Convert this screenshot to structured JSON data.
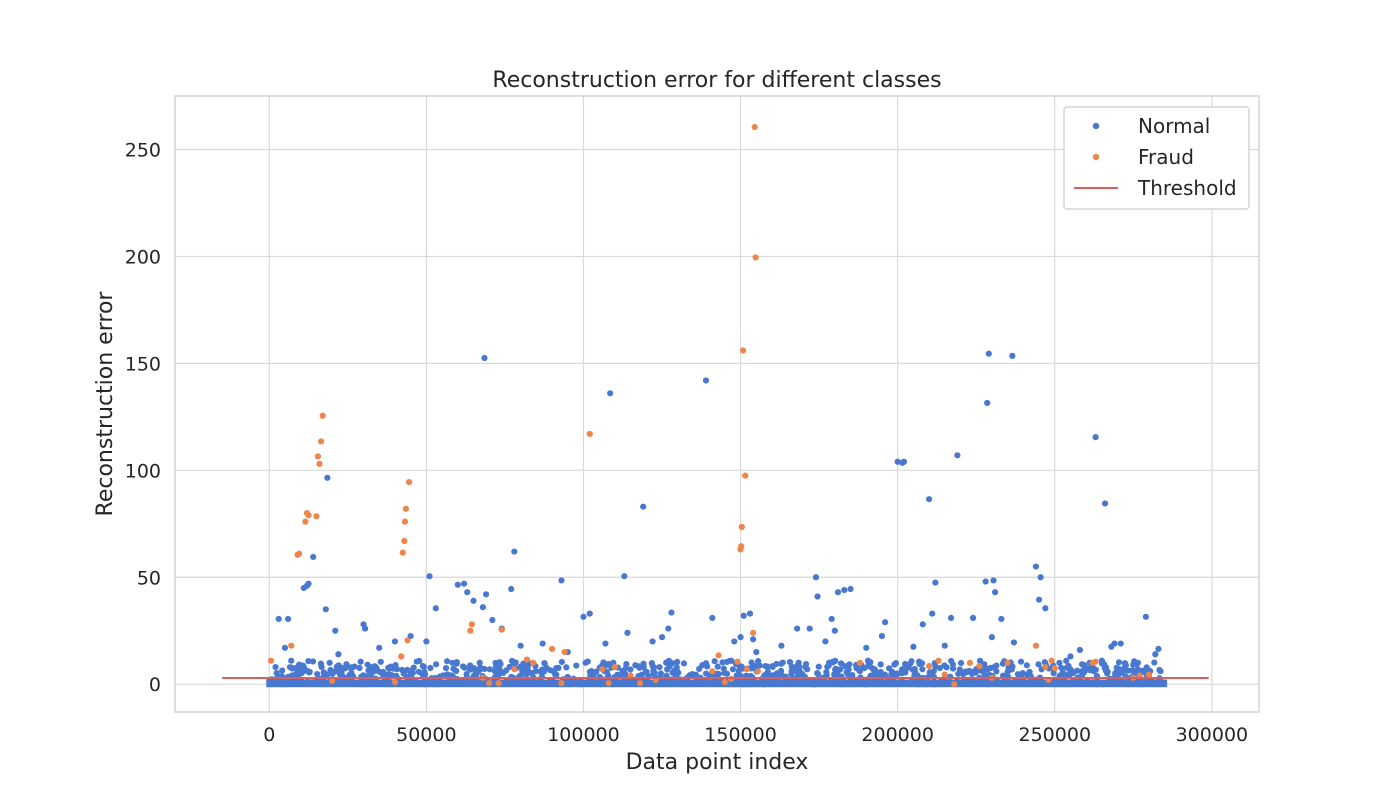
{
  "chart_data": {
    "type": "scatter",
    "title": "Reconstruction error for different classes",
    "xlabel": "Data point index",
    "ylabel": "Reconstruction error",
    "xlim": [
      -30000,
      315000
    ],
    "ylim": [
      -13,
      275
    ],
    "xticks": [
      0,
      50000,
      100000,
      150000,
      200000,
      250000,
      300000
    ],
    "yticks": [
      0,
      50,
      100,
      150,
      200,
      250
    ],
    "grid": true,
    "legend_position": "top-right",
    "colors": {
      "normal": "#4878d0",
      "fraud": "#ee854a",
      "threshold": "#d65f5f"
    },
    "dense_band": {
      "series": "Normal",
      "x_range": [
        0,
        284807
      ],
      "y_range": [
        0,
        11
      ]
    },
    "series": [
      {
        "name": "Normal",
        "kind": "points",
        "points": [
          [
            2000,
            8
          ],
          [
            3000,
            30.5
          ],
          [
            5000,
            17
          ],
          [
            6000,
            30.5
          ],
          [
            7000,
            11
          ],
          [
            9000,
            8
          ],
          [
            11000,
            45
          ],
          [
            12000,
            46
          ],
          [
            12500,
            47
          ],
          [
            14000,
            59.5
          ],
          [
            18000,
            35
          ],
          [
            18500,
            96.5
          ],
          [
            21000,
            25
          ],
          [
            22000,
            14
          ],
          [
            30000,
            28
          ],
          [
            30500,
            26
          ],
          [
            35000,
            17
          ],
          [
            40000,
            20
          ],
          [
            45000,
            22.5
          ],
          [
            50000,
            20
          ],
          [
            51000,
            50.5
          ],
          [
            53000,
            35.5
          ],
          [
            60000,
            46.5
          ],
          [
            62000,
            47
          ],
          [
            63000,
            43
          ],
          [
            65000,
            39
          ],
          [
            68000,
            36
          ],
          [
            68500,
            152.5
          ],
          [
            69000,
            42
          ],
          [
            71000,
            30
          ],
          [
            74000,
            26
          ],
          [
            77000,
            44.5
          ],
          [
            78000,
            62
          ],
          [
            80000,
            18
          ],
          [
            87000,
            19
          ],
          [
            93000,
            48.5
          ],
          [
            95000,
            15
          ],
          [
            100000,
            31.5
          ],
          [
            102000,
            33
          ],
          [
            107000,
            19
          ],
          [
            108500,
            136
          ],
          [
            113000,
            50.5
          ],
          [
            114000,
            24
          ],
          [
            119000,
            83
          ],
          [
            122000,
            20
          ],
          [
            125000,
            22
          ],
          [
            127000,
            26
          ],
          [
            128000,
            33.5
          ],
          [
            139000,
            142
          ],
          [
            141000,
            31
          ],
          [
            148000,
            20
          ],
          [
            150000,
            22
          ],
          [
            151000,
            32
          ],
          [
            153000,
            33
          ],
          [
            154000,
            21
          ],
          [
            155000,
            15
          ],
          [
            163000,
            18
          ],
          [
            168000,
            26
          ],
          [
            172000,
            26
          ],
          [
            174000,
            50
          ],
          [
            174500,
            41
          ],
          [
            177000,
            20
          ],
          [
            179000,
            30.5
          ],
          [
            180000,
            25
          ],
          [
            181000,
            43
          ],
          [
            183000,
            44
          ],
          [
            185000,
            44.5
          ],
          [
            190000,
            17
          ],
          [
            195000,
            22.5
          ],
          [
            196000,
            29
          ],
          [
            200000,
            104
          ],
          [
            201500,
            103.5
          ],
          [
            202000,
            104
          ],
          [
            205000,
            17.5
          ],
          [
            208000,
            28
          ],
          [
            210000,
            86.5
          ],
          [
            211000,
            33
          ],
          [
            212000,
            47.5
          ],
          [
            215000,
            18
          ],
          [
            217000,
            31
          ],
          [
            219000,
            107
          ],
          [
            224000,
            31
          ],
          [
            228000,
            48
          ],
          [
            228500,
            131.5
          ],
          [
            229000,
            154.5
          ],
          [
            230000,
            22
          ],
          [
            230500,
            48.5
          ],
          [
            231000,
            43
          ],
          [
            233000,
            30.5
          ],
          [
            236500,
            153.5
          ],
          [
            237000,
            19.5
          ],
          [
            244000,
            55
          ],
          [
            245000,
            39.5
          ],
          [
            245500,
            50
          ],
          [
            247000,
            35.5
          ],
          [
            255000,
            13
          ],
          [
            258000,
            16
          ],
          [
            263000,
            115.5
          ],
          [
            265000,
            11
          ],
          [
            266000,
            84.5
          ],
          [
            268000,
            17.5
          ],
          [
            269000,
            19
          ],
          [
            271000,
            19
          ],
          [
            279000,
            31.5
          ],
          [
            282000,
            14
          ],
          [
            283000,
            16.5
          ]
        ]
      },
      {
        "name": "Fraud",
        "kind": "points",
        "points": [
          [
            541,
            11
          ],
          [
            7000,
            18
          ],
          [
            9000,
            60.5
          ],
          [
            9500,
            61
          ],
          [
            11500,
            76
          ],
          [
            12000,
            80
          ],
          [
            12500,
            79
          ],
          [
            15000,
            78.5
          ],
          [
            15500,
            106.5
          ],
          [
            16000,
            103
          ],
          [
            16500,
            113.5
          ],
          [
            17000,
            125.5
          ],
          [
            20000,
            1.5
          ],
          [
            40000,
            1
          ],
          [
            42000,
            13
          ],
          [
            42500,
            61.5
          ],
          [
            43000,
            67
          ],
          [
            43200,
            76
          ],
          [
            43500,
            82
          ],
          [
            44000,
            20.5
          ],
          [
            44500,
            94.5
          ],
          [
            64000,
            25
          ],
          [
            64500,
            28
          ],
          [
            68000,
            3
          ],
          [
            70000,
            0.5
          ],
          [
            73000,
            0.5
          ],
          [
            74000,
            25.5
          ],
          [
            78000,
            7
          ],
          [
            82000,
            11.5
          ],
          [
            84000,
            10
          ],
          [
            90000,
            16.5
          ],
          [
            93000,
            0.5
          ],
          [
            94000,
            15
          ],
          [
            102000,
            117
          ],
          [
            106000,
            7
          ],
          [
            108000,
            0.5
          ],
          [
            110000,
            8
          ],
          [
            115000,
            4
          ],
          [
            118000,
            0.5
          ],
          [
            123000,
            2
          ],
          [
            141000,
            6
          ],
          [
            143000,
            13.5
          ],
          [
            145000,
            1
          ],
          [
            147000,
            2.5
          ],
          [
            149000,
            10.5
          ],
          [
            150000,
            63
          ],
          [
            150200,
            64.5
          ],
          [
            150400,
            73.5
          ],
          [
            150800,
            156
          ],
          [
            151500,
            97.5
          ],
          [
            152000,
            7
          ],
          [
            154000,
            24
          ],
          [
            154500,
            260.5
          ],
          [
            154800,
            199.5
          ],
          [
            155500,
            6
          ],
          [
            188000,
            10
          ],
          [
            210000,
            8.5
          ],
          [
            213000,
            11
          ],
          [
            215000,
            4.5
          ],
          [
            218000,
            0
          ],
          [
            223000,
            10
          ],
          [
            226000,
            8.5
          ],
          [
            230000,
            3
          ],
          [
            235000,
            10
          ],
          [
            244000,
            18
          ],
          [
            247000,
            8
          ],
          [
            248000,
            2
          ],
          [
            249000,
            11
          ],
          [
            250000,
            7.5
          ],
          [
            262000,
            10
          ],
          [
            263000,
            10.5
          ],
          [
            275000,
            3
          ],
          [
            277000,
            4
          ],
          [
            280000,
            4.5
          ]
        ]
      },
      {
        "name": "Threshold",
        "kind": "line",
        "x": [
          -15000,
          299000
        ],
        "values": [
          2.9,
          2.9
        ]
      }
    ]
  }
}
